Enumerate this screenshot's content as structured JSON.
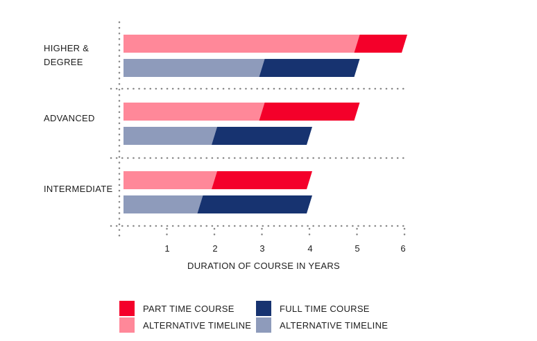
{
  "chart_data": {
    "type": "bar",
    "orientation": "horizontal",
    "stacked": true,
    "categories": [
      "HIGHER &\nDEGREE",
      "ADVANCED",
      "INTERMEDIATE"
    ],
    "xlabel": "DURATION OF COURSE IN YEARS",
    "xlim": [
      0,
      6
    ],
    "xticks": [
      1,
      2,
      3,
      4,
      5,
      6
    ],
    "bars": [
      {
        "category": 0,
        "group": "part_time",
        "alt_end": 5.0,
        "total": 6.0
      },
      {
        "category": 0,
        "group": "full_time",
        "alt_end": 3.0,
        "total": 5.0
      },
      {
        "category": 1,
        "group": "part_time",
        "alt_end": 3.0,
        "total": 5.0
      },
      {
        "category": 1,
        "group": "full_time",
        "alt_end": 2.0,
        "total": 4.0
      },
      {
        "category": 2,
        "group": "part_time",
        "alt_end": 2.0,
        "total": 4.0
      },
      {
        "category": 2,
        "group": "full_time",
        "alt_end": 1.7,
        "total": 4.0
      }
    ],
    "colors": {
      "part_time": "#f4002a",
      "part_time_alt": "#ff8899",
      "full_time": "#173370",
      "full_time_alt": "#8e9bbb",
      "grid": "#888888"
    },
    "legend": [
      {
        "label": "PART TIME COURSE",
        "color": "#f4002a"
      },
      {
        "label": "FULL TIME COURSE",
        "color": "#173370"
      },
      {
        "label": "ALTERNATIVE TIMELINE",
        "color": "#ff8899"
      },
      {
        "label": "ALTERNATIVE TIMELINE",
        "color": "#8e9bbb"
      }
    ],
    "legend_position": "bottom"
  }
}
